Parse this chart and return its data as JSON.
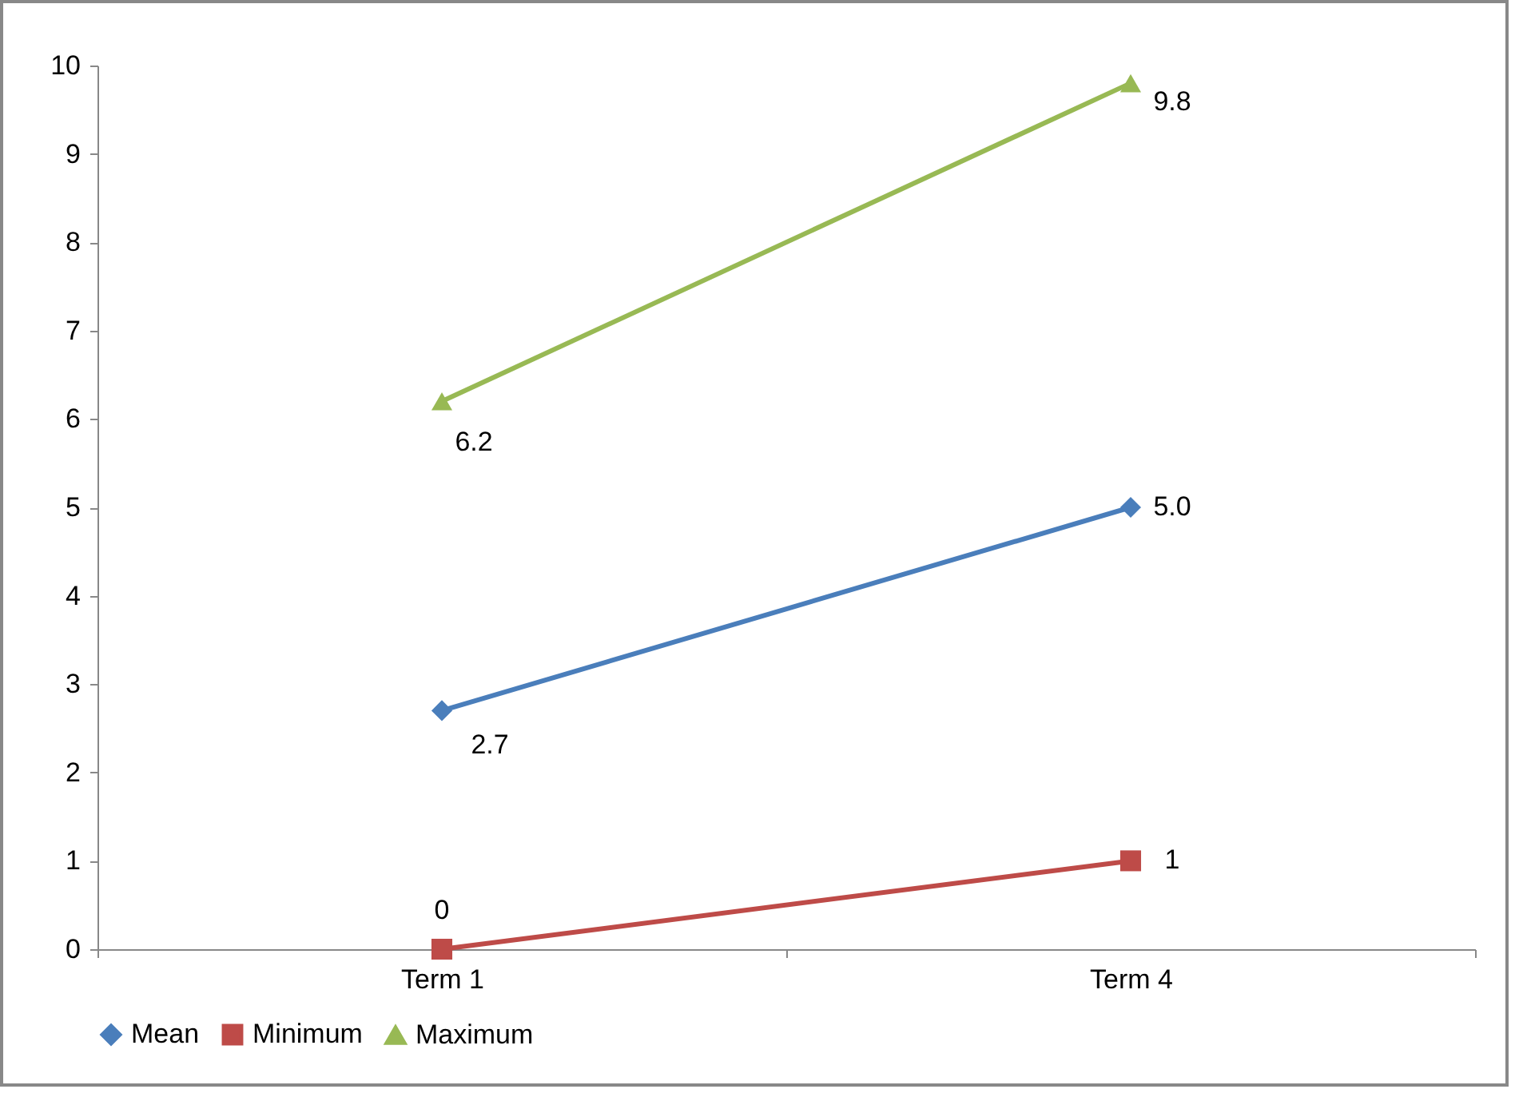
{
  "chart_data": {
    "type": "line",
    "categories": [
      "Term 1",
      "Term 4"
    ],
    "series": [
      {
        "name": "Mean",
        "color": "#4a7ebb",
        "values": [
          2.7,
          5.0
        ],
        "value_labels": [
          "2.7",
          "5.0"
        ],
        "marker": "diamond"
      },
      {
        "name": "Minimum",
        "color": "#be4b48",
        "values": [
          0,
          1
        ],
        "value_labels": [
          "0",
          "1"
        ],
        "marker": "square"
      },
      {
        "name": "Maximum",
        "color": "#98b954",
        "values": [
          6.2,
          9.8
        ],
        "value_labels": [
          "6.2",
          "9.8"
        ],
        "marker": "triangle"
      }
    ],
    "ylim": [
      0,
      10
    ],
    "yticks": [
      0,
      1,
      2,
      3,
      4,
      5,
      6,
      7,
      8,
      9,
      10
    ],
    "grid": false,
    "legend": "bottom"
  }
}
